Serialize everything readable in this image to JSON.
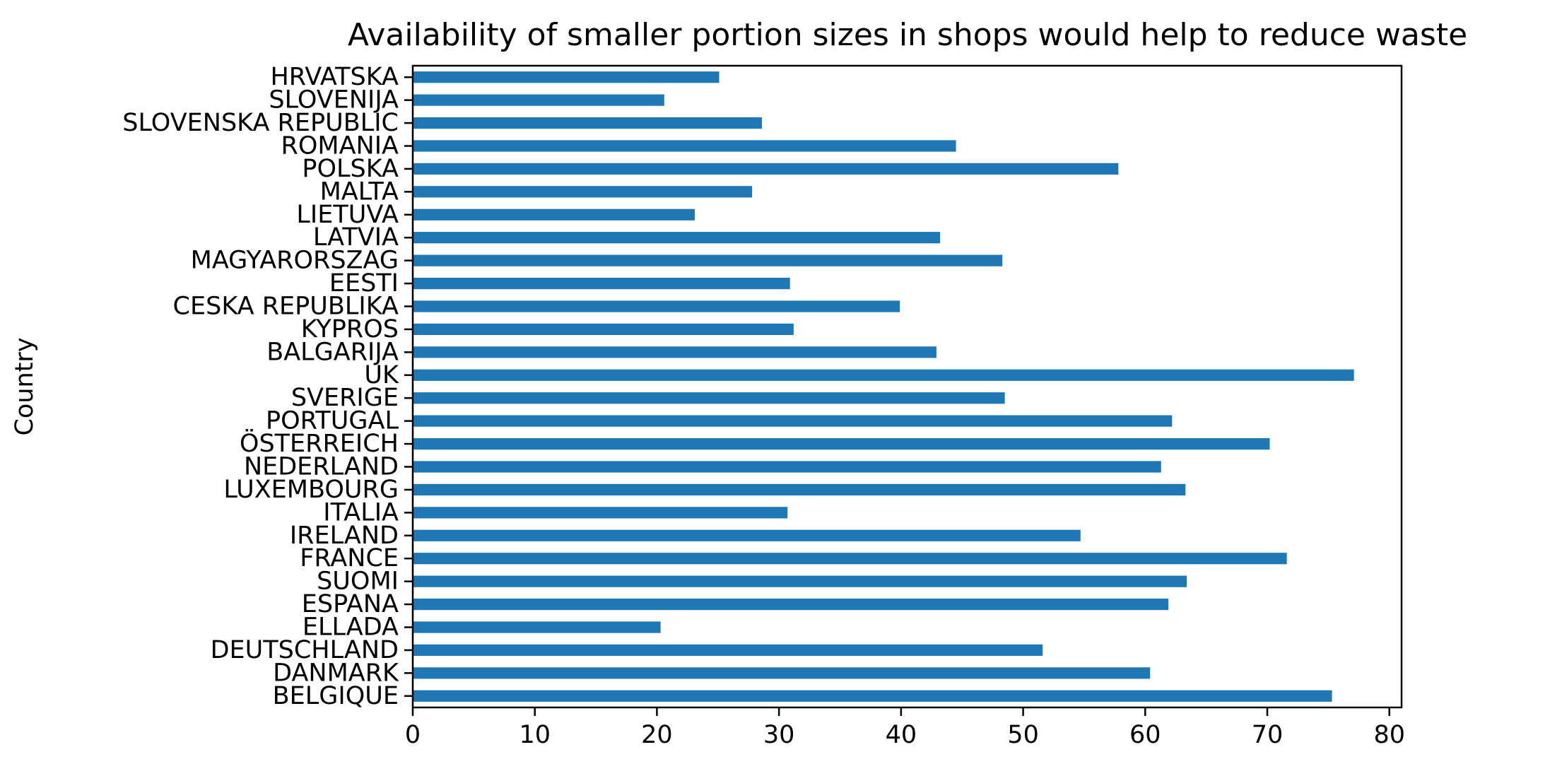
{
  "chart_data": {
    "type": "bar",
    "orientation": "horizontal",
    "title": "Availability of smaller portion sizes in shops would help to reduce waste",
    "xlabel": "",
    "ylabel": "Country",
    "xlim": [
      0,
      81
    ],
    "xticks": [
      0,
      10,
      20,
      30,
      40,
      50,
      60,
      70,
      80
    ],
    "grid": false,
    "legend": false,
    "bar_color": "#1f77b4",
    "categories": [
      "BELGIQUE",
      "DANMARK",
      "DEUTSCHLAND",
      "ELLADA",
      "ESPANA",
      "SUOMI",
      "FRANCE",
      "IRELAND",
      "ITALIA",
      "LUXEMBOURG",
      "NEDERLAND",
      "ÖSTERREICH",
      "PORTUGAL",
      "SVERIGE",
      "UK",
      "BALGARIJA",
      "KYPROS",
      "CESKA REPUBLIKA",
      "EESTI",
      "MAGYARORSZAG",
      "LATVIA",
      "LIETUVA",
      "MALTA",
      "POLSKA",
      "ROMANIA",
      "SLOVENSKA REPUBLIC",
      "SLOVENIJA",
      "HRVATSKA"
    ],
    "values": [
      75.3,
      60.4,
      51.6,
      20.3,
      61.9,
      63.4,
      71.6,
      54.7,
      30.7,
      63.3,
      61.3,
      70.2,
      62.2,
      48.5,
      77.1,
      42.9,
      31.2,
      39.9,
      30.9,
      48.3,
      43.2,
      23.1,
      27.8,
      57.8,
      44.5,
      28.6,
      20.6,
      25.1
    ]
  }
}
